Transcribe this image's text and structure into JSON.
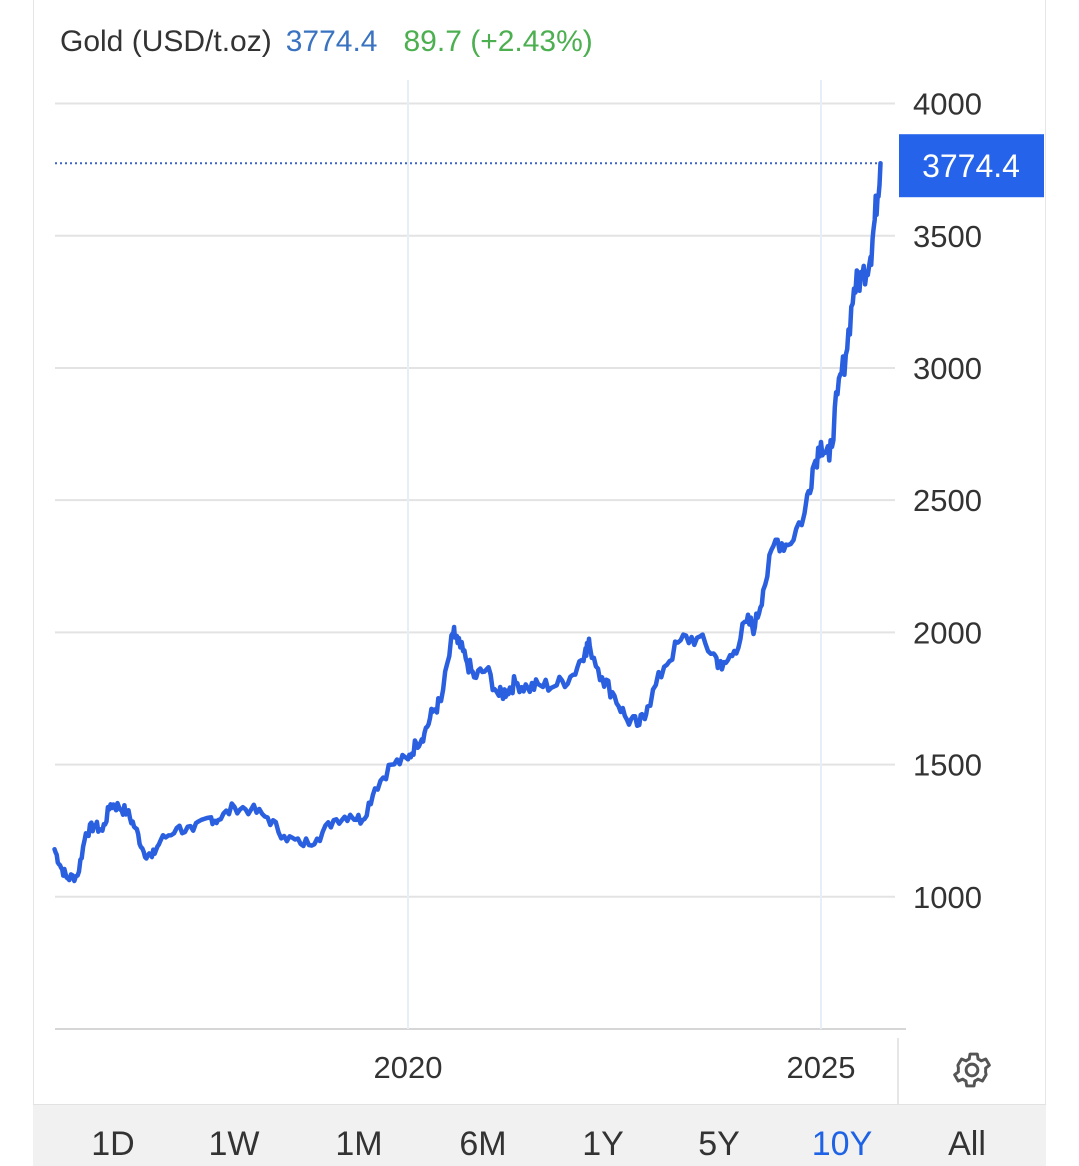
{
  "header": {
    "title": "Gold (USD/t.oz)",
    "price": "3774.4",
    "change": "89.7 (+2.43%)"
  },
  "colors": {
    "line": "#2a5fe0",
    "price_tag": "#2563eb",
    "change_up": "#4caf50",
    "price_text": "#3a73c0",
    "active_range": "#1e62e6"
  },
  "icons": {
    "settings": "gear-icon"
  },
  "ranges": [
    "1D",
    "1W",
    "1M",
    "6M",
    "1Y",
    "5Y",
    "10Y",
    "All"
  ],
  "active_range": "10Y",
  "chart_data": {
    "type": "line",
    "title": "Gold (USD/t.oz)",
    "xlabel": "",
    "ylabel": "",
    "x_ticks": [
      "2020",
      "2025"
    ],
    "y_ticks": [
      "4000",
      "3500",
      "3000",
      "2500",
      "2000",
      "1500",
      "1000"
    ],
    "ylim": [
      500,
      4000
    ],
    "last_value": "3774.4",
    "grid": true,
    "series": [
      {
        "x": [
          2015.72,
          2015.8,
          2015.88,
          2016.0,
          2016.1,
          2016.2,
          2016.3,
          2016.4,
          2016.5,
          2016.6,
          2016.7,
          2016.8,
          2016.9,
          2017.0,
          2017.2,
          2017.4,
          2017.6,
          2017.7,
          2017.9,
          2018.1,
          2018.3,
          2018.5,
          2018.7,
          2018.9,
          2019.1,
          2019.3,
          2019.45,
          2019.6,
          2019.8,
          2020.0,
          2020.1,
          2020.2,
          2020.3,
          2020.4,
          2020.55,
          2020.6,
          2020.7,
          2020.8,
          2020.95,
          2021.1,
          2021.2,
          2021.3,
          2021.45,
          2021.6,
          2021.8,
          2022.0,
          2022.15,
          2022.2,
          2022.35,
          2022.5,
          2022.65,
          2022.8,
          2022.9,
          2023.1,
          2023.3,
          2023.5,
          2023.7,
          2023.8,
          2023.95,
          2024.1,
          2024.2,
          2024.3,
          2024.45,
          2024.6,
          2024.8,
          2024.9,
          2025.0,
          2025.1,
          2025.2,
          2025.3,
          2025.4,
          2025.5,
          2025.6,
          2025.65,
          2025.72
        ],
        "values": [
          1180,
          1110,
          1070,
          1080,
          1240,
          1270,
          1250,
          1350,
          1340,
          1320,
          1260,
          1170,
          1150,
          1210,
          1260,
          1250,
          1300,
          1290,
          1340,
          1330,
          1300,
          1230,
          1200,
          1220,
          1290,
          1310,
          1290,
          1410,
          1500,
          1520,
          1580,
          1620,
          1700,
          1740,
          2000,
          1960,
          1900,
          1830,
          1860,
          1760,
          1780,
          1810,
          1790,
          1800,
          1800,
          1840,
          1940,
          1950,
          1830,
          1760,
          1670,
          1650,
          1720,
          1870,
          1970,
          1980,
          1920,
          1860,
          1930,
          2040,
          2020,
          2160,
          2350,
          2330,
          2450,
          2620,
          2720,
          2650,
          2900,
          3050,
          3300,
          3350,
          3420,
          3560,
          3774.4
        ]
      }
    ]
  }
}
